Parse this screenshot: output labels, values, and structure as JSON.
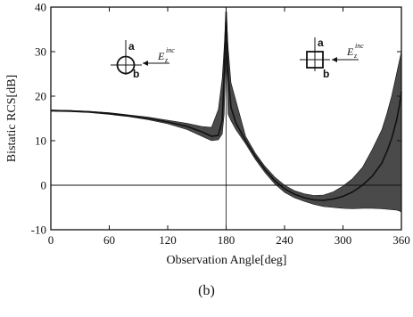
{
  "caption": "(b)",
  "chart_data": {
    "type": "line",
    "title": "",
    "xlabel": "Observation Angle[deg]",
    "ylabel": "Bistatic RCS[dB]",
    "xlim": [
      0,
      360
    ],
    "ylim": [
      -10,
      40
    ],
    "xticks": [
      0,
      60,
      120,
      180,
      240,
      300,
      360
    ],
    "yticks": [
      -10,
      0,
      10,
      20,
      30,
      40
    ],
    "grid": false,
    "reference_lines": [
      {
        "axis": "y",
        "value": 0
      },
      {
        "axis": "x",
        "value": 180
      }
    ],
    "series": [
      {
        "name": "",
        "x": [
          0,
          20,
          40,
          60,
          80,
          100,
          120,
          140,
          155,
          165,
          172,
          176,
          178,
          179,
          180,
          181,
          182,
          185,
          190,
          200,
          210,
          220,
          230,
          240,
          250,
          260,
          270,
          280,
          290,
          300,
          310,
          320,
          330,
          340,
          345,
          350,
          355,
          358,
          360
        ],
        "y": [
          16.8,
          16.7,
          16.5,
          16.1,
          15.6,
          15.0,
          14.2,
          13.2,
          12.0,
          11.0,
          11.2,
          14.5,
          25.0,
          33.0,
          39.0,
          33.0,
          25.0,
          17.5,
          14.0,
          10.0,
          6.5,
          3.5,
          1.0,
          -0.8,
          -2.0,
          -2.8,
          -3.3,
          -3.4,
          -3.1,
          -2.5,
          -1.5,
          0.0,
          2.0,
          5.0,
          7.5,
          10.5,
          14.5,
          18.0,
          21.0
        ],
        "band_upper": [
          16.9,
          16.8,
          16.6,
          16.3,
          15.8,
          15.3,
          14.6,
          13.9,
          13.2,
          13.0,
          17.0,
          24.0,
          31.0,
          35.0,
          40.0,
          35.0,
          31.0,
          23.0,
          19.0,
          11.0,
          7.2,
          4.2,
          1.8,
          0.0,
          -1.2,
          -1.9,
          -2.3,
          -2.2,
          -1.5,
          -0.2,
          1.5,
          4.0,
          8.0,
          12.5,
          16.0,
          20.0,
          25.0,
          28.0,
          30.0
        ],
        "band_lower": [
          16.6,
          16.5,
          16.3,
          15.9,
          15.4,
          14.7,
          13.8,
          12.5,
          11.0,
          10.0,
          10.2,
          11.5,
          16.0,
          24.0,
          30.0,
          24.0,
          16.0,
          14.5,
          12.5,
          9.3,
          5.8,
          2.8,
          0.3,
          -1.6,
          -2.8,
          -3.6,
          -4.3,
          -4.8,
          -5.0,
          -5.2,
          -5.3,
          -5.2,
          -5.2,
          -5.3,
          -5.4,
          -5.5,
          -5.6,
          -5.8,
          -6.0
        ]
      }
    ],
    "insets": [
      {
        "shape": "circle",
        "labels": [
          "a",
          "b"
        ],
        "source_label": "E",
        "source_sub": "z",
        "source_sup": "inc"
      },
      {
        "shape": "square",
        "labels": [
          "a",
          "b"
        ],
        "source_label": "E",
        "source_sub": "z",
        "source_sup": "inc"
      }
    ]
  }
}
